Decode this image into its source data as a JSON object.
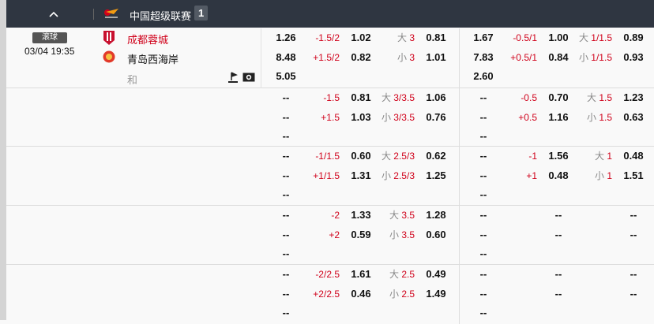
{
  "header": {
    "league_name": "中国超级联赛",
    "count": "1",
    "icons": [
      "chevron-up-icon",
      "league-logo-icon"
    ]
  },
  "match": {
    "status_badge": "滚球",
    "datetime": "03/04 19:35",
    "home_team": "成都蓉城",
    "away_team": "青岛西海岸",
    "draw_label": "和",
    "home_color": "#d0021b",
    "icons": [
      "corner-flag-icon",
      "live-video-icon"
    ]
  },
  "colors": {
    "header_bg": "#2f3641",
    "handicap_red": "#d0021b"
  },
  "rows": [
    {
      "halves": [
        {
          "lines": [
            [
              "1.26",
              "-1.5/2",
              "1.02",
              "大",
              "3",
              "0.81"
            ],
            [
              "8.48",
              "+1.5/2",
              "0.82",
              "小",
              "3",
              "1.01"
            ],
            [
              "5.05",
              "",
              "",
              "",
              "",
              ""
            ]
          ]
        },
        {
          "lines": [
            [
              "1.67",
              "-0.5/1",
              "1.00",
              "大",
              "1/1.5",
              "0.89"
            ],
            [
              "7.83",
              "+0.5/1",
              "0.84",
              "小",
              "1/1.5",
              "0.93"
            ],
            [
              "2.60",
              "",
              "",
              "",
              "",
              ""
            ]
          ]
        }
      ]
    },
    {
      "halves": [
        {
          "lines": [
            [
              "--",
              "-1.5",
              "0.81",
              "大",
              "3/3.5",
              "1.06"
            ],
            [
              "--",
              "+1.5",
              "1.03",
              "小",
              "3/3.5",
              "0.76"
            ],
            [
              "--",
              "",
              "",
              "",
              "",
              ""
            ]
          ]
        },
        {
          "lines": [
            [
              "--",
              "-0.5",
              "0.70",
              "大",
              "1.5",
              "1.23"
            ],
            [
              "--",
              "+0.5",
              "1.16",
              "小",
              "1.5",
              "0.63"
            ],
            [
              "--",
              "",
              "",
              "",
              "",
              ""
            ]
          ]
        }
      ]
    },
    {
      "halves": [
        {
          "lines": [
            [
              "--",
              "-1/1.5",
              "0.60",
              "大",
              "2.5/3",
              "0.62"
            ],
            [
              "--",
              "+1/1.5",
              "1.31",
              "小",
              "2.5/3",
              "1.25"
            ],
            [
              "--",
              "",
              "",
              "",
              "",
              ""
            ]
          ]
        },
        {
          "lines": [
            [
              "--",
              "-1",
              "1.56",
              "大",
              "1",
              "0.48"
            ],
            [
              "--",
              "+1",
              "0.48",
              "小",
              "1",
              "1.51"
            ],
            [
              "--",
              "",
              "",
              "",
              "",
              ""
            ]
          ]
        }
      ]
    },
    {
      "halves": [
        {
          "lines": [
            [
              "--",
              "-2",
              "1.33",
              "大",
              "3.5",
              "1.28"
            ],
            [
              "--",
              "+2",
              "0.59",
              "小",
              "3.5",
              "0.60"
            ],
            [
              "--",
              "",
              "",
              "",
              "",
              ""
            ]
          ]
        },
        {
          "lines": [
            [
              "--",
              "",
              "--",
              "",
              "",
              "--"
            ],
            [
              "--",
              "",
              "--",
              "",
              "",
              "--"
            ],
            [
              "--",
              "",
              "",
              "",
              "",
              ""
            ]
          ]
        }
      ]
    },
    {
      "halves": [
        {
          "lines": [
            [
              "--",
              "-2/2.5",
              "1.61",
              "大",
              "2.5",
              "0.49"
            ],
            [
              "--",
              "+2/2.5",
              "0.46",
              "小",
              "2.5",
              "1.49"
            ],
            [
              "--",
              "",
              "",
              "",
              "",
              ""
            ]
          ]
        },
        {
          "lines": [
            [
              "--",
              "",
              "--",
              "",
              "",
              "--"
            ],
            [
              "--",
              "",
              "--",
              "",
              "",
              "--"
            ],
            [
              "--",
              "",
              "",
              "",
              "",
              ""
            ]
          ]
        }
      ]
    }
  ]
}
